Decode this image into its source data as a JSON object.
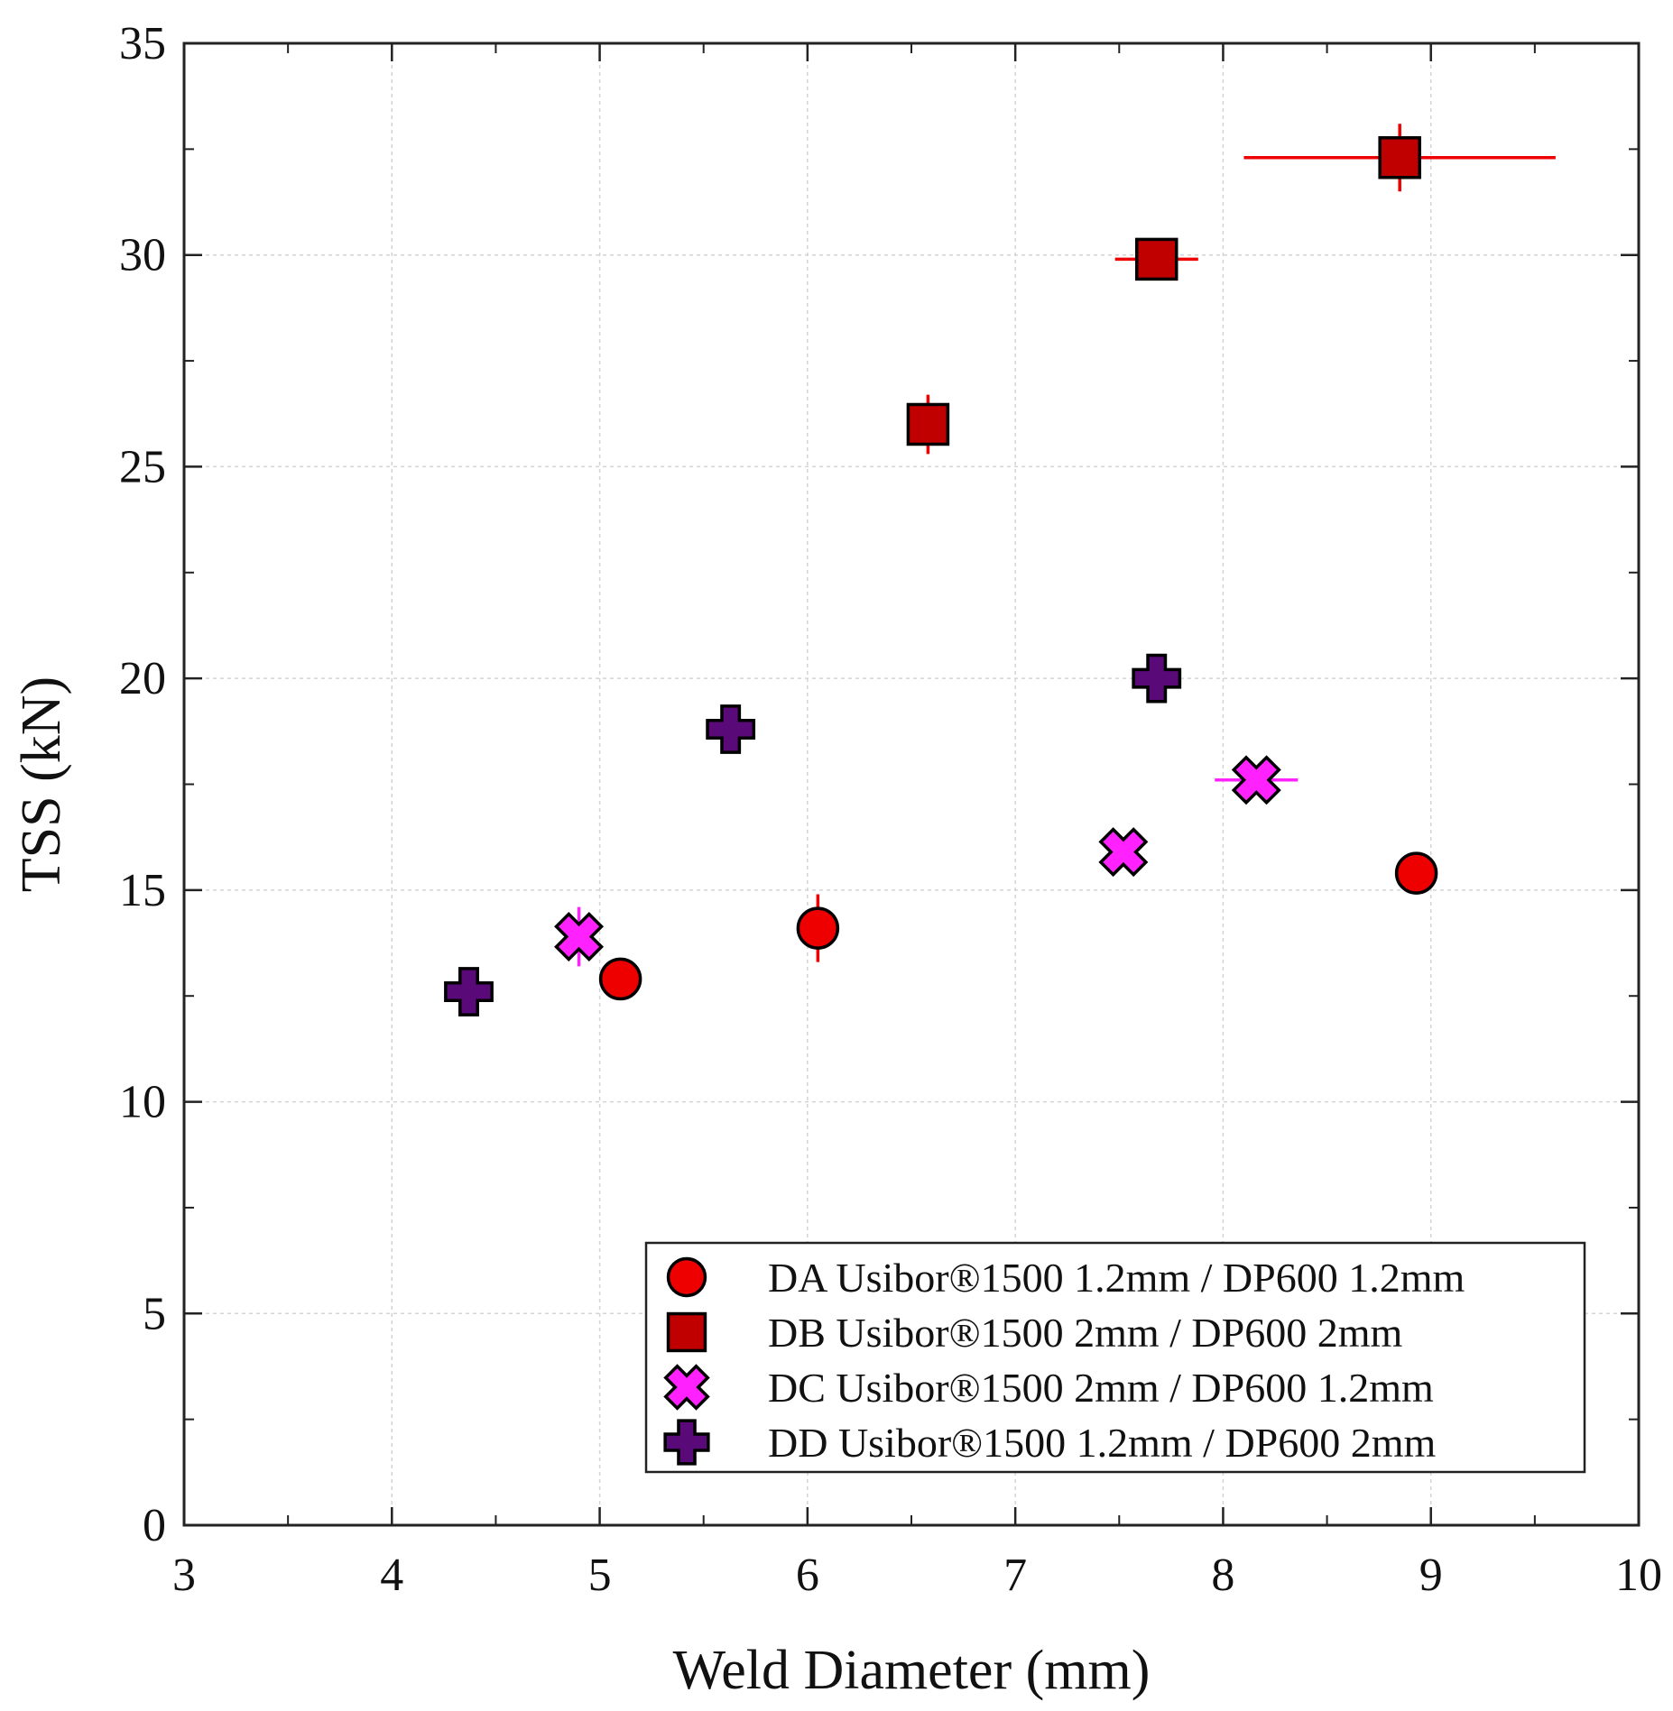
{
  "chart_data": {
    "type": "scatter",
    "title": "",
    "xlabel": "Weld Diameter (mm)",
    "ylabel": "TSS (kN)",
    "xlim": [
      3,
      10
    ],
    "ylim": [
      0,
      35
    ],
    "xticks": [
      3,
      4,
      5,
      6,
      7,
      8,
      9,
      10
    ],
    "yticks": [
      0,
      5,
      10,
      15,
      20,
      25,
      30,
      35
    ],
    "grid": true,
    "legend_position": "bottom-right",
    "series": [
      {
        "name": "DA Usibor®1500 1.2mm / DP600 1.2mm",
        "marker": "circle",
        "color": "#ee0000",
        "error_color": "#ee0000",
        "points": [
          {
            "x": 5.1,
            "y": 12.9,
            "xerr": 0.0,
            "yerr": 0.0
          },
          {
            "x": 6.05,
            "y": 14.1,
            "xerr": 0.0,
            "yerr": 0.8
          },
          {
            "x": 8.93,
            "y": 15.4,
            "xerr": 0.0,
            "yerr": 0.0
          }
        ]
      },
      {
        "name": "DB Usibor®1500 2mm / DP600 2mm",
        "marker": "square",
        "color": "#c00000",
        "error_color": "#ee0000",
        "points": [
          {
            "x": 6.58,
            "y": 26.0,
            "xerr": 0.0,
            "yerr": 0.7
          },
          {
            "x": 7.68,
            "y": 29.9,
            "xerr": 0.2,
            "yerr": 0.0
          },
          {
            "x": 8.85,
            "y": 32.3,
            "xerr": 0.75,
            "yerr": 0.8
          }
        ]
      },
      {
        "name": "DC Usibor®1500 2mm / DP600 1.2mm",
        "marker": "x",
        "color": "#ff22ff",
        "error_color": "#ff22ff",
        "points": [
          {
            "x": 4.9,
            "y": 13.9,
            "xerr": 0.0,
            "yerr": 0.7
          },
          {
            "x": 7.52,
            "y": 15.9,
            "xerr": 0.0,
            "yerr": 0.0
          },
          {
            "x": 8.16,
            "y": 17.6,
            "xerr": 0.2,
            "yerr": 0.0
          }
        ]
      },
      {
        "name": "DD Usibor®1500 1.2mm / DP600 2mm",
        "marker": "plus",
        "color": "#5a0a78",
        "error_color": "#5a0a78",
        "points": [
          {
            "x": 4.37,
            "y": 12.6,
            "xerr": 0.0,
            "yerr": 0.0
          },
          {
            "x": 5.63,
            "y": 18.8,
            "xerr": 0.0,
            "yerr": 0.0
          },
          {
            "x": 7.68,
            "y": 20.0,
            "xerr": 0.0,
            "yerr": 0.0
          }
        ]
      }
    ]
  }
}
